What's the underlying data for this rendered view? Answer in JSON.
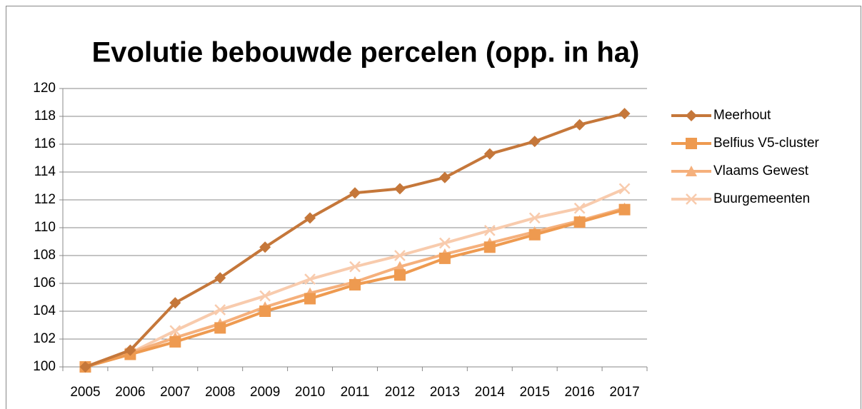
{
  "chart_data": {
    "type": "line",
    "title": "Evolutie bebouwde percelen (opp. in ha)",
    "categories": [
      "2005",
      "2006",
      "2007",
      "2008",
      "2009",
      "2010",
      "2011",
      "2012",
      "2013",
      "2014",
      "2015",
      "2016",
      "2017"
    ],
    "series": [
      {
        "name": "Meerhout",
        "color": "#c5773a",
        "marker": "diamond",
        "values": [
          100,
          101.2,
          104.6,
          106.4,
          108.6,
          110.7,
          112.5,
          112.8,
          113.6,
          115.3,
          116.2,
          117.4,
          118.2
        ]
      },
      {
        "name": "Belfius V5-cluster",
        "color": "#ee9a50",
        "marker": "square",
        "values": [
          100,
          100.9,
          101.8,
          102.8,
          104.0,
          104.9,
          105.9,
          106.6,
          107.8,
          108.6,
          109.5,
          110.4,
          111.3
        ]
      },
      {
        "name": "Vlaams Gewest",
        "color": "#f5b07c",
        "marker": "triangle",
        "values": [
          100,
          101.0,
          102.1,
          103.1,
          104.3,
          105.3,
          106.1,
          107.2,
          108.1,
          108.9,
          109.7,
          110.5,
          111.4
        ]
      },
      {
        "name": "Buurgemeenten",
        "color": "#f8cbad",
        "marker": "x",
        "values": [
          100,
          101.0,
          102.6,
          104.1,
          105.1,
          106.3,
          107.2,
          108.0,
          108.9,
          109.8,
          110.7,
          111.4,
          112.8
        ]
      }
    ],
    "ylim": [
      100,
      120
    ],
    "yticks": [
      100,
      102,
      104,
      106,
      108,
      110,
      112,
      114,
      116,
      118,
      120
    ],
    "grid": true,
    "legend": "right"
  }
}
